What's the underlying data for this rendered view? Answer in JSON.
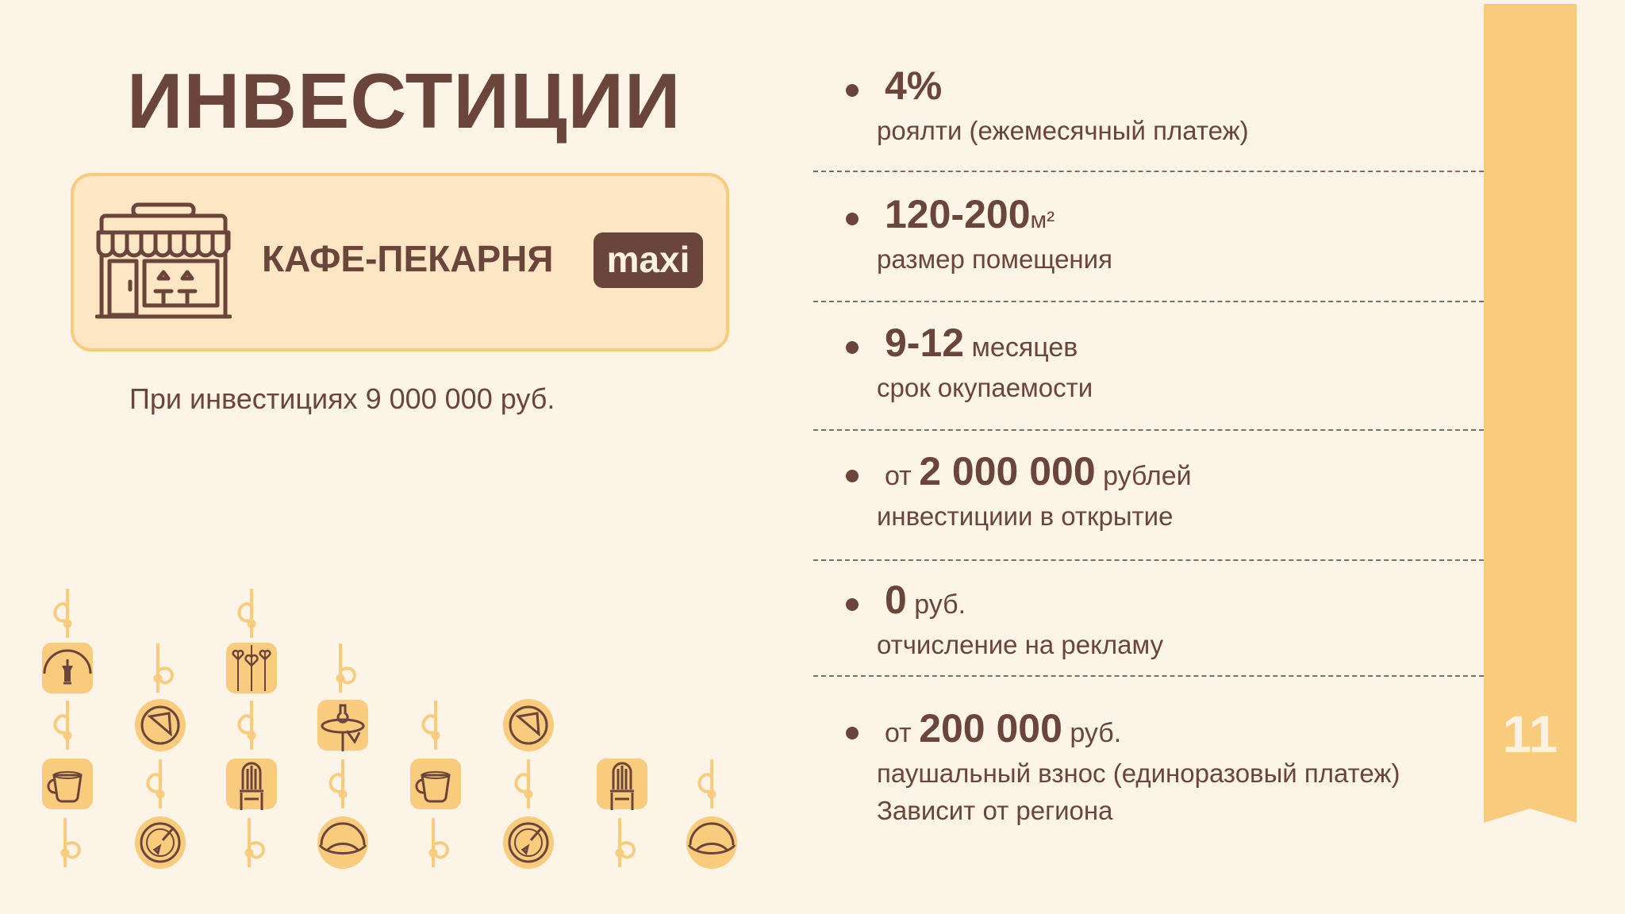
{
  "title": "ИНВЕСТИЦИИ",
  "card": {
    "icon": "storefront-icon",
    "title": "КАФЕ-ПЕКАРНЯ",
    "badge": "maxi"
  },
  "investment_note": "При инвестициях  9 000 000 руб.",
  "items": [
    {
      "prefix": "",
      "value": "4%",
      "suffix": "",
      "desc": "роялти (ежемесячный платеж)",
      "extra": ""
    },
    {
      "prefix": "",
      "value": "120-200",
      "suffix": "м²",
      "desc": "размер помещения",
      "extra": ""
    },
    {
      "prefix": "",
      "value": "9-12",
      "suffix": "месяцев",
      "desc": "срок окупаемости",
      "extra": ""
    },
    {
      "prefix": "от",
      "value": "2 000 000",
      "suffix": "рублей",
      "desc": "инвестициии в открытие",
      "extra": ""
    },
    {
      "prefix": "",
      "value": "0",
      "suffix": "руб.",
      "desc": "отчисление на рекламу",
      "extra": ""
    },
    {
      "prefix": "от",
      "value": "200 000",
      "suffix": "руб.",
      "desc": "паушальный взнос (единоразовый платеж)",
      "extra": "Зависит от региона"
    }
  ],
  "page_number": "11",
  "colors": {
    "background": "#fcf5e7",
    "text": "#6b453b",
    "accent": "#f9cb7c",
    "card": "#fde6c3"
  },
  "pattern": [
    [
      "swirl",
      null,
      "swirl",
      null,
      null,
      null,
      null,
      null
    ],
    [
      "lantern",
      "swirl-b",
      "hearts",
      "swirl-b",
      null,
      null,
      null,
      null
    ],
    [
      "swirl",
      "pie",
      "swirl",
      "lamp",
      "swirl",
      "pie",
      null,
      null
    ],
    [
      "cup",
      "swirl",
      "chair",
      "swirl",
      "cup",
      "swirl",
      "chair",
      "swirl"
    ],
    [
      "swirl-b",
      "plate",
      "swirl-b",
      "bowl",
      "swirl-b",
      "plate",
      "swirl-b",
      "bowl"
    ]
  ]
}
